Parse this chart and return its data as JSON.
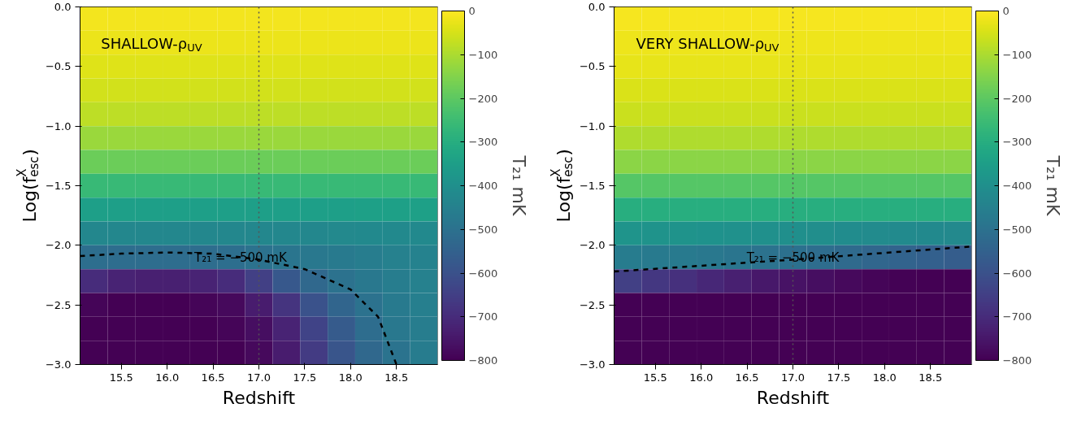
{
  "chart_data": [
    {
      "type": "heatmap",
      "xlabel": "Redshift",
      "ylabel": "Log(f$^{X}$$_{esc}$)",
      "clabel": "T₂₁ mK",
      "annotations": [
        "SHALLOW-ρ$_{UV}$",
        {
          "text": "T₂₁ = −500 mK",
          "x": 16.8,
          "y": -2.1
        }
      ],
      "x": [
        15.2,
        15.5,
        15.8,
        16.1,
        16.4,
        16.7,
        17.0,
        17.3,
        17.6,
        17.9,
        18.2,
        18.5,
        18.8
      ],
      "y": [
        -0.1,
        -0.3,
        -0.5,
        -0.7,
        -0.9,
        -1.1,
        -1.3,
        -1.5,
        -1.7,
        -1.9,
        -2.1,
        -2.3,
        -2.5,
        -2.7,
        -2.9
      ],
      "xlim": [
        15.05,
        18.95
      ],
      "ylim": [
        -3,
        0
      ],
      "xticks": [
        15.5,
        {
          "value": 16,
          "label": "16.0"
        },
        16.5,
        {
          "value": 17,
          "label": "17.0"
        },
        17.5,
        {
          "value": 18,
          "label": "18.0"
        },
        18.5
      ],
      "yticks": [
        {
          "value": -3,
          "label": "−3.0"
        },
        {
          "value": -2.5,
          "label": "−2.5"
        },
        {
          "value": -2,
          "label": "−2.0"
        },
        {
          "value": -1.5,
          "label": "−1.5"
        },
        {
          "value": -1,
          "label": "−1.0"
        },
        {
          "value": -0.5,
          "label": "−0.5"
        },
        {
          "value": 0,
          "label": "0.0"
        }
      ],
      "clim": [
        -800,
        0
      ],
      "cticks": [
        {
          "value": -800,
          "label": "−800"
        },
        {
          "value": -700,
          "label": "−700"
        },
        {
          "value": -600,
          "label": "−600"
        },
        {
          "value": -500,
          "label": "−500"
        },
        {
          "value": -400,
          "label": "−400"
        },
        {
          "value": -300,
          "label": "−300"
        },
        {
          "value": -200,
          "label": "−200"
        },
        {
          "value": -100,
          "label": "−100"
        },
        0
      ],
      "cells": [
        [
          -15,
          -15,
          -15,
          -15,
          -15,
          -15,
          -15,
          -15,
          -15,
          -15,
          -15,
          -15,
          -15
        ],
        [
          -25,
          -25,
          -25,
          -25,
          -25,
          -25,
          -25,
          -25,
          -25,
          -25,
          -25,
          -25,
          -25
        ],
        [
          -40,
          -40,
          -40,
          -40,
          -40,
          -40,
          -40,
          -40,
          -40,
          -40,
          -40,
          -40,
          -40
        ],
        [
          -55,
          -55,
          -55,
          -55,
          -55,
          -55,
          -55,
          -55,
          -55,
          -55,
          -55,
          -55,
          -55
        ],
        [
          -80,
          -80,
          -80,
          -80,
          -80,
          -80,
          -80,
          -80,
          -80,
          -80,
          -80,
          -80,
          -80
        ],
        [
          -120,
          -120,
          -120,
          -120,
          -120,
          -120,
          -120,
          -120,
          -120,
          -120,
          -120,
          -120,
          -120
        ],
        [
          -180,
          -180,
          -180,
          -180,
          -180,
          -180,
          -180,
          -180,
          -180,
          -180,
          -180,
          -180,
          -180
        ],
        [
          -260,
          -260,
          -260,
          -260,
          -260,
          -260,
          -260,
          -260,
          -260,
          -260,
          -260,
          -260,
          -260
        ],
        [
          -350,
          -350,
          -350,
          -350,
          -350,
          -350,
          -350,
          -350,
          -350,
          -350,
          -345,
          -345,
          -345
        ],
        [
          -430,
          -430,
          -430,
          -430,
          -430,
          -430,
          -430,
          -430,
          -430,
          -425,
          -420,
          -420,
          -420
        ],
        [
          -510,
          -515,
          -515,
          -515,
          -515,
          -510,
          -500,
          -490,
          -480,
          -470,
          -460,
          -450,
          -445
        ],
        [
          -700,
          -720,
          -730,
          -730,
          -720,
          -700,
          -650,
          -580,
          -530,
          -500,
          -480,
          -460,
          -450
        ],
        [
          -790,
          -800,
          -800,
          -800,
          -790,
          -780,
          -740,
          -680,
          -600,
          -540,
          -500,
          -470,
          -455
        ],
        [
          -800,
          -800,
          -800,
          -800,
          -800,
          -790,
          -770,
          -720,
          -640,
          -570,
          -515,
          -480,
          -460
        ],
        [
          -800,
          -800,
          -800,
          -800,
          -800,
          -800,
          -780,
          -740,
          -660,
          -590,
          -530,
          -495,
          -465
        ]
      ],
      "series": [
        {
          "type": "line",
          "color": "#000000",
          "line_style": "dashed",
          "x": [
            15.05,
            15.5,
            16,
            16.5,
            17,
            17.5,
            18,
            18.3,
            18.4,
            18.5
          ],
          "values": [
            -2.09,
            -2.07,
            -2.06,
            -2.07,
            -2.12,
            -2.2,
            -2.37,
            -2.6,
            -2.8,
            -3.0
          ]
        }
      ],
      "ref_lines": [
        {
          "axis": "x",
          "value": 17,
          "color": "#555555",
          "line_style": "dotted"
        }
      ]
    },
    {
      "type": "heatmap",
      "xlabel": "Redshift",
      "ylabel": "Log(f$^{X}$$_{esc}$)",
      "clabel": "T₂₁ mK",
      "annotations": [
        "VERY SHALLOW-ρ$_{UV}$",
        {
          "text": "T₂₁ = −500 mK",
          "x": 17.0,
          "y": -2.1
        }
      ],
      "x": [
        15.2,
        15.5,
        15.8,
        16.1,
        16.4,
        16.7,
        17.0,
        17.3,
        17.6,
        17.9,
        18.2,
        18.5,
        18.8
      ],
      "y": [
        -0.1,
        -0.3,
        -0.5,
        -0.7,
        -0.9,
        -1.1,
        -1.3,
        -1.5,
        -1.7,
        -1.9,
        -2.1,
        -2.3,
        -2.5,
        -2.7,
        -2.9
      ],
      "xlim": [
        15.05,
        18.95
      ],
      "ylim": [
        -3,
        0
      ],
      "xticks": [
        15.5,
        {
          "value": 16,
          "label": "16.0"
        },
        16.5,
        {
          "value": 17,
          "label": "17.0"
        },
        17.5,
        {
          "value": 18,
          "label": "18.0"
        },
        18.5
      ],
      "yticks": [
        {
          "value": -3,
          "label": "−3.0"
        },
        {
          "value": -2.5,
          "label": "−2.5"
        },
        {
          "value": -2,
          "label": "−2.0"
        },
        {
          "value": -1.5,
          "label": "−1.5"
        },
        {
          "value": -1,
          "label": "−1.0"
        },
        {
          "value": -0.5,
          "label": "−0.5"
        },
        {
          "value": 0,
          "label": "0.0"
        }
      ],
      "clim": [
        -800,
        0
      ],
      "cticks": [
        {
          "value": -800,
          "label": "−800"
        },
        {
          "value": -700,
          "label": "−700"
        },
        {
          "value": -600,
          "label": "−600"
        },
        {
          "value": -500,
          "label": "−500"
        },
        {
          "value": -400,
          "label": "−400"
        },
        {
          "value": -300,
          "label": "−300"
        },
        {
          "value": -200,
          "label": "−200"
        },
        {
          "value": -100,
          "label": "−100"
        },
        0
      ],
      "cells": [
        [
          -10,
          -10,
          -10,
          -10,
          -10,
          -10,
          -10,
          -10,
          -10,
          -10,
          -10,
          -10,
          -10
        ],
        [
          -20,
          -20,
          -20,
          -20,
          -20,
          -20,
          -20,
          -20,
          -20,
          -20,
          -20,
          -20,
          -20
        ],
        [
          -30,
          -30,
          -30,
          -30,
          -30,
          -30,
          -30,
          -30,
          -30,
          -30,
          -30,
          -30,
          -30
        ],
        [
          -45,
          -45,
          -45,
          -45,
          -45,
          -45,
          -45,
          -45,
          -45,
          -45,
          -45,
          -45,
          -45
        ],
        [
          -65,
          -65,
          -65,
          -65,
          -65,
          -65,
          -65,
          -65,
          -65,
          -65,
          -65,
          -65,
          -65
        ],
        [
          -95,
          -95,
          -95,
          -95,
          -95,
          -95,
          -95,
          -95,
          -95,
          -95,
          -95,
          -95,
          -95
        ],
        [
          -140,
          -140,
          -140,
          -140,
          -140,
          -140,
          -140,
          -140,
          -140,
          -140,
          -140,
          -140,
          -140
        ],
        [
          -210,
          -210,
          -210,
          -210,
          -210,
          -210,
          -210,
          -210,
          -210,
          -210,
          -210,
          -210,
          -210
        ],
        [
          -300,
          -300,
          -300,
          -300,
          -300,
          -300,
          -300,
          -300,
          -300,
          -300,
          -300,
          -300,
          -300
        ],
        [
          -385,
          -388,
          -390,
          -393,
          -396,
          -400,
          -403,
          -406,
          -410,
          -413,
          -416,
          -420,
          -423
        ],
        [
          -465,
          -470,
          -475,
          -480,
          -490,
          -500,
          -505,
          -515,
          -525,
          -535,
          -545,
          -555,
          -565
        ],
        [
          -650,
          -670,
          -690,
          -710,
          -730,
          -750,
          -760,
          -770,
          -780,
          -790,
          -795,
          -800,
          -800
        ],
        [
          -800,
          -800,
          -800,
          -800,
          -800,
          -800,
          -800,
          -800,
          -800,
          -800,
          -800,
          -800,
          -800
        ],
        [
          -800,
          -800,
          -800,
          -800,
          -800,
          -800,
          -800,
          -800,
          -800,
          -800,
          -800,
          -800,
          -800
        ],
        [
          -800,
          -800,
          -800,
          -800,
          -800,
          -800,
          -800,
          -800,
          -800,
          -800,
          -800,
          -800,
          -800
        ]
      ],
      "series": [
        {
          "type": "line",
          "color": "#000000",
          "line_style": "dashed",
          "x": [
            15.05,
            17,
            18.95
          ],
          "values": [
            -2.22,
            -2.12,
            -2.01
          ]
        }
      ],
      "ref_lines": [
        {
          "axis": "x",
          "value": 17,
          "color": "#555555",
          "line_style": "dotted"
        }
      ]
    }
  ]
}
